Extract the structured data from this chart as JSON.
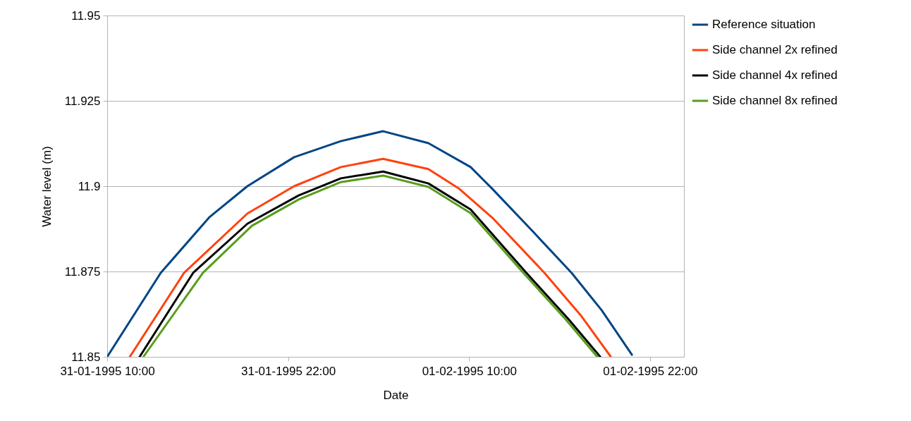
{
  "chart_data": {
    "type": "line",
    "xlabel": "Date",
    "ylabel": "Water level (m)",
    "xlim": [
      "1995-01-31T10:00",
      "1995-02-02T00:15"
    ],
    "xticks": [
      {
        "value": "1995-01-31T10:00",
        "label": "31-01-1995 10:00"
      },
      {
        "value": "1995-01-31T22:00",
        "label": "31-01-1995 22:00"
      },
      {
        "value": "1995-02-01T10:00",
        "label": "01-02-1995 10:00"
      },
      {
        "value": "1995-02-01T22:00",
        "label": "01-02-1995 22:00"
      }
    ],
    "ylim": [
      11.85,
      11.95
    ],
    "yticks": [
      11.85,
      11.875,
      11.9,
      11.925,
      11.95
    ],
    "grid": "y",
    "legend": "right",
    "line_style": "solid",
    "marker": "none",
    "series": [
      {
        "name": "Reference situation",
        "color": "#004586",
        "x": [
          "1995-01-31T10:00",
          "1995-01-31T13:33",
          "1995-01-31T16:48",
          "1995-01-31T19:18",
          "1995-01-31T22:24",
          "1995-02-01T01:30",
          "1995-02-01T04:18",
          "1995-02-01T07:18",
          "1995-02-01T10:06",
          "1995-02-01T11:30",
          "1995-02-01T14:18",
          "1995-02-01T16:48",
          "1995-02-01T18:48",
          "1995-02-01T20:48"
        ],
        "values": [
          11.85,
          11.8746,
          11.891,
          11.9,
          11.9085,
          11.9132,
          11.9161,
          11.9126,
          11.9056,
          11.8994,
          11.8864,
          11.8746,
          11.8636,
          11.8506
        ]
      },
      {
        "name": "Side channel 2x refined",
        "color": "#ff420e",
        "x": [
          "1995-01-31T11:30",
          "1995-01-31T15:06",
          "1995-01-31T19:18",
          "1995-01-31T22:24",
          "1995-02-01T01:30",
          "1995-02-01T04:18",
          "1995-02-01T07:18",
          "1995-02-01T09:18",
          "1995-02-01T11:36",
          "1995-02-01T15:00",
          "1995-02-01T17:24",
          "1995-02-01T19:24"
        ],
        "values": [
          11.85,
          11.8746,
          11.892,
          11.9,
          11.9056,
          11.908,
          11.905,
          11.8994,
          11.8905,
          11.8746,
          11.8622,
          11.85
        ]
      },
      {
        "name": "Side channel 4x refined",
        "color": "#000000",
        "x": [
          "1995-01-31T12:09",
          "1995-01-31T15:42",
          "1995-01-31T19:18",
          "1995-01-31T22:42",
          "1995-02-01T01:30",
          "1995-02-01T04:18",
          "1995-02-01T07:18",
          "1995-02-01T10:06",
          "1995-02-01T13:48",
          "1995-02-01T16:36",
          "1995-02-01T18:42"
        ],
        "values": [
          11.85,
          11.8746,
          11.889,
          11.8973,
          11.9023,
          11.9043,
          11.9008,
          11.8932,
          11.8746,
          11.861,
          11.85
        ]
      },
      {
        "name": "Side channel 8x refined",
        "color": "#579d1c",
        "x": [
          "1995-01-31T12:24",
          "1995-01-31T16:21",
          "1995-01-31T19:36",
          "1995-01-31T22:42",
          "1995-02-01T01:30",
          "1995-02-01T04:18",
          "1995-02-01T07:18",
          "1995-02-01T10:06",
          "1995-02-01T13:36",
          "1995-02-01T16:24",
          "1995-02-01T18:30"
        ],
        "values": [
          11.85,
          11.8746,
          11.8884,
          11.8961,
          11.9012,
          11.9031,
          11.8998,
          11.8921,
          11.8746,
          11.861,
          11.85
        ]
      }
    ]
  }
}
